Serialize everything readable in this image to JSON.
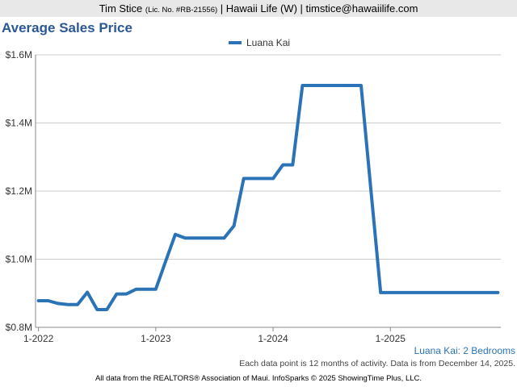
{
  "header": {
    "name": "Tim Stice",
    "license": "(Lic. No. #RB-21556)",
    "rest": "| Hawaii Life (W) | timstice@hawaiilife.com"
  },
  "caption": "Luana Kai: 2 Bedrooms",
  "note": "Each data point is 12 months of activity. Data is from December 14, 2025.",
  "footer": "All data from the REALTORS® Association of Maui. InfoSparks © 2025 ShowingTime Plus, LLC.",
  "colors": {
    "series": "#2b73b6",
    "title": "#2b5797",
    "grid": "#cccccc"
  },
  "chart_data": {
    "type": "line",
    "title": "Average Sales Price",
    "legend_position": "top",
    "grid": true,
    "ylim": [
      800000,
      1600000
    ],
    "yticks": [
      800000,
      1000000,
      1200000,
      1400000,
      1600000
    ],
    "ytick_labels": [
      "$0.8M",
      "$1.0M",
      "$1.2M",
      "$1.4M",
      "$1.6M"
    ],
    "xlim": [
      "2022-01",
      "2025-12"
    ],
    "xticks": [
      "2022-01",
      "2023-01",
      "2024-01",
      "2025-01"
    ],
    "xtick_labels": [
      "1-2022",
      "1-2023",
      "1-2024",
      "1-2025"
    ],
    "series": [
      {
        "name": "Luana Kai",
        "x": [
          "2022-01",
          "2022-02",
          "2022-03",
          "2022-04",
          "2022-05",
          "2022-06",
          "2022-07",
          "2022-08",
          "2022-09",
          "2022-10",
          "2022-11",
          "2022-12",
          "2023-01",
          "2023-02",
          "2023-03",
          "2023-04",
          "2023-05",
          "2023-06",
          "2023-07",
          "2023-08",
          "2023-09",
          "2023-10",
          "2023-11",
          "2023-12",
          "2024-01",
          "2024-02",
          "2024-03",
          "2024-04",
          "2024-05",
          "2024-06",
          "2024-07",
          "2024-08",
          "2024-09",
          "2024-10",
          "2024-11",
          "2024-12",
          "2025-01",
          "2025-02",
          "2025-03",
          "2025-04",
          "2025-05",
          "2025-06",
          "2025-07",
          "2025-08",
          "2025-09",
          "2025-10",
          "2025-11",
          "2025-12"
        ],
        "values": [
          878000,
          878000,
          870000,
          867000,
          867000,
          903000,
          852000,
          852000,
          898000,
          898000,
          912000,
          912000,
          912000,
          993000,
          1073000,
          1062000,
          1062000,
          1062000,
          1062000,
          1062000,
          1098000,
          1237000,
          1237000,
          1237000,
          1237000,
          1277000,
          1277000,
          1510000,
          1510000,
          1510000,
          1510000,
          1510000,
          1510000,
          1510000,
          1205000,
          902000,
          902000,
          902000,
          902000,
          902000,
          902000,
          902000,
          902000,
          902000,
          902000,
          902000,
          902000,
          902000
        ]
      }
    ]
  }
}
